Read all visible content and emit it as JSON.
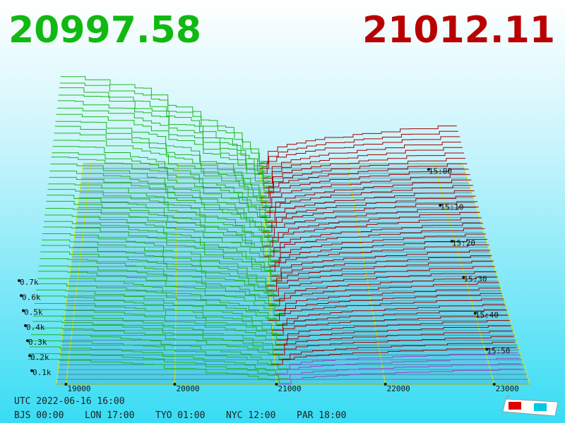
{
  "header": {
    "bid_price": "20997.58",
    "ask_price": "21012.11"
  },
  "price_axis": {
    "ticks": [
      "19000",
      "20000",
      "21000",
      "22000",
      "23000"
    ]
  },
  "depth_axis": {
    "ticks": [
      "0.7k",
      "0.6k",
      "0.5k",
      "0.4k",
      "0.3k",
      "0.2k",
      "0.1k"
    ]
  },
  "time_axis": {
    "ticks": [
      "15:00",
      "15:10",
      "15:20",
      "15:30",
      "15:40",
      "15:50"
    ]
  },
  "footer": {
    "utc": "UTC 2022-06-16 16:00",
    "zones": [
      "BJS 00:00",
      "LON 17:00",
      "TYO 01:00",
      "NYC 12:00",
      "PAR 18:00"
    ]
  }
}
